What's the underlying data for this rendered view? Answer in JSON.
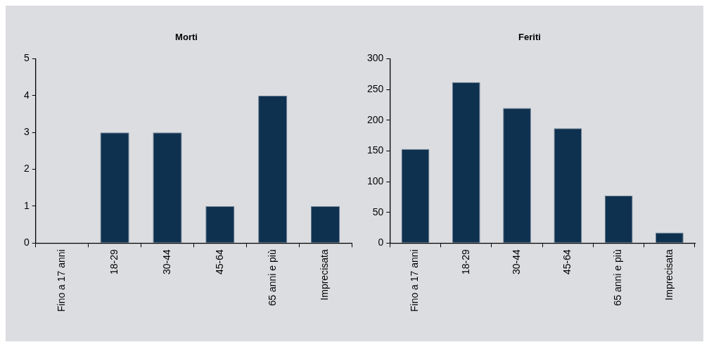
{
  "chart_data": [
    {
      "type": "bar",
      "title": "Morti",
      "categories": [
        "Fino a 17 anni",
        "18-29",
        "30-44",
        "45-64",
        "65 anni e più",
        "Imprecisata"
      ],
      "values": [
        0,
        3,
        3,
        1,
        4,
        1
      ],
      "color": "#0f3150",
      "ylim": [
        0,
        5
      ],
      "yticks": [
        0,
        1,
        2,
        3,
        4,
        5
      ],
      "grid": false,
      "legend": false
    },
    {
      "type": "bar",
      "title": "Feriti",
      "categories": [
        "Fino a 17 anni",
        "18-29",
        "30-44",
        "45-64",
        "65 anni e più",
        "Imprecisata"
      ],
      "values": [
        153,
        262,
        220,
        187,
        77,
        17
      ],
      "color": "#0f3150",
      "ylim": [
        0,
        300
      ],
      "yticks": [
        0,
        50,
        100,
        150,
        200,
        250,
        300
      ],
      "grid": false,
      "legend": false
    }
  ]
}
